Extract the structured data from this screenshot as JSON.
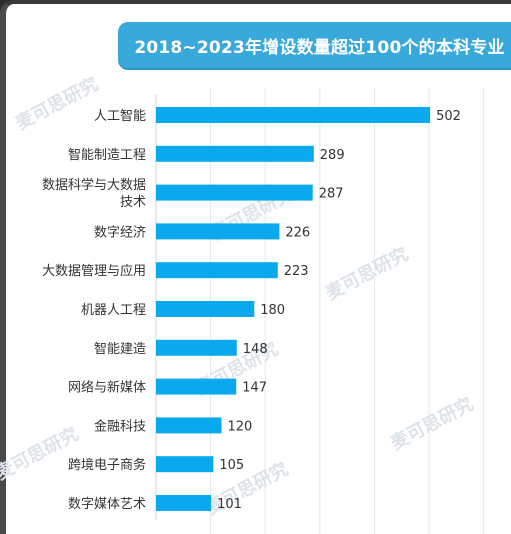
{
  "chart_data": {
    "type": "bar",
    "orientation": "horizontal",
    "title": "2018~2023年增设数量超过100个的本科专业",
    "categories": [
      [
        "人工智能"
      ],
      [
        "智能制造工程"
      ],
      [
        "数据科学与大数据",
        "技术"
      ],
      [
        "数字经济"
      ],
      [
        "大数据管理与应用"
      ],
      [
        "机器人工程"
      ],
      [
        "智能建造"
      ],
      [
        "网络与新媒体"
      ],
      [
        "金融科技"
      ],
      [
        "跨境电子商务"
      ],
      [
        "数字媒体艺术"
      ]
    ],
    "values": [
      502,
      289,
      287,
      226,
      223,
      180,
      148,
      147,
      120,
      105,
      101
    ],
    "xlim": [
      0,
      600
    ],
    "bar_color": "#0aa9ee",
    "grid": true
  },
  "watermark": "麦可思研究"
}
